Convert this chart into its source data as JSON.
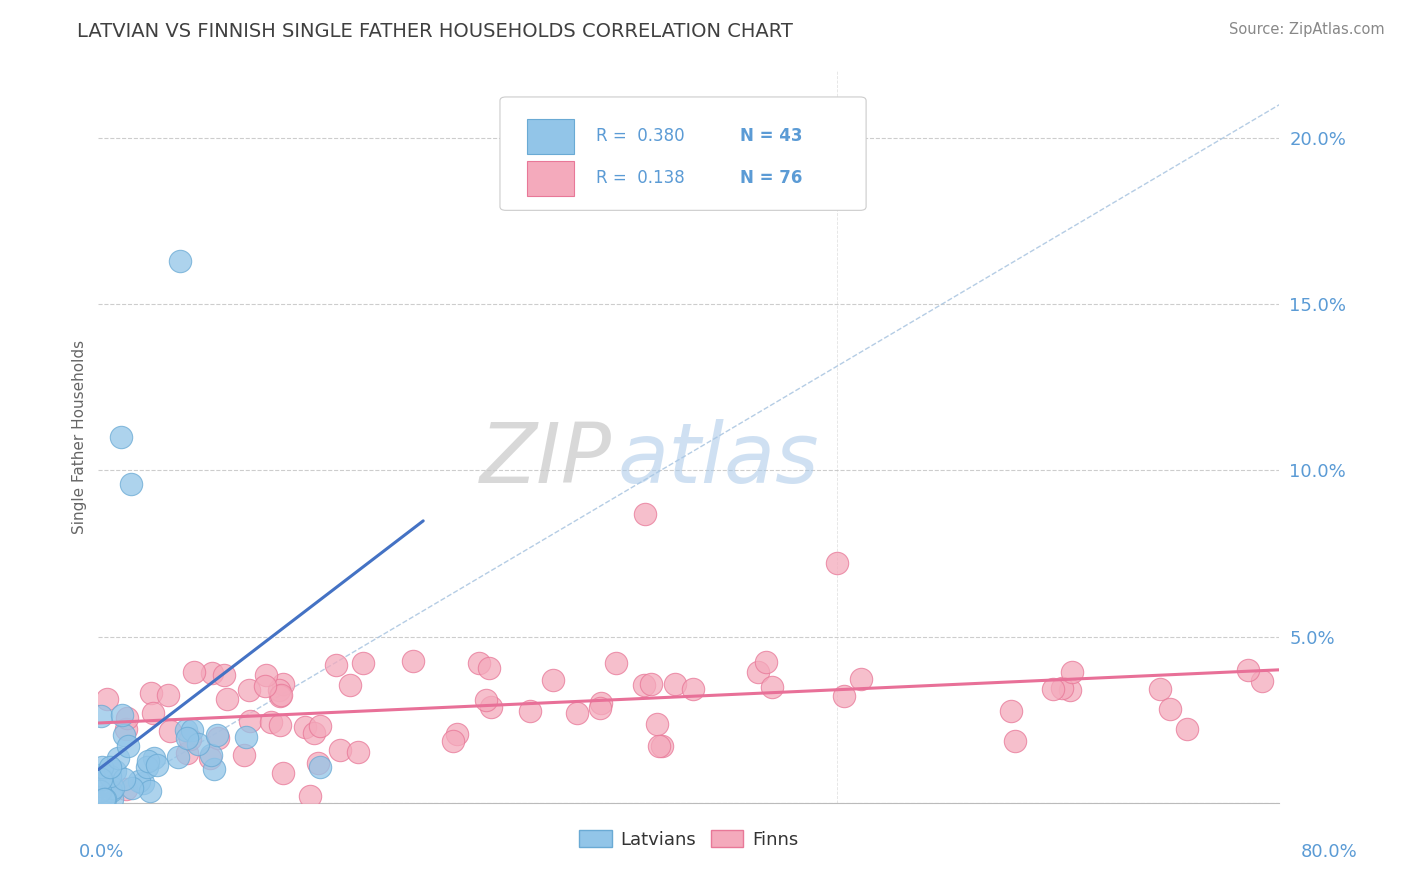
{
  "title": "LATVIAN VS FINNISH SINGLE FATHER HOUSEHOLDS CORRELATION CHART",
  "source": "Source: ZipAtlas.com",
  "ylabel": "Single Father Households",
  "watermark_zip": "ZIP",
  "watermark_atlas": "atlas",
  "legend_latvians": "Latvians",
  "legend_finns": "Finns",
  "R_latvians": 0.38,
  "N_latvians": 43,
  "R_finns": 0.138,
  "N_finns": 76,
  "latvian_color": "#92C5E8",
  "finn_color": "#F4AABC",
  "latvian_edge_color": "#6AAAD4",
  "finn_edge_color": "#E87898",
  "latvian_line_color": "#4472C4",
  "finn_line_color": "#E87098",
  "diag_line_color": "#A8C4E0",
  "background_color": "#FFFFFF",
  "title_color": "#404040",
  "axis_label_color": "#5B9BD5",
  "grid_color": "#C8C8C8",
  "source_color": "#888888",
  "ylabel_color": "#666666",
  "xlim": [
    0.0,
    0.8
  ],
  "ylim": [
    0.0,
    0.22
  ],
  "ytick_positions": [
    0.0,
    0.05,
    0.1,
    0.15,
    0.2
  ],
  "ytick_labels": [
    "",
    "5.0%",
    "10.0%",
    "15.0%",
    "20.0%"
  ],
  "seed_latvians": 12,
  "seed_finns": 99
}
